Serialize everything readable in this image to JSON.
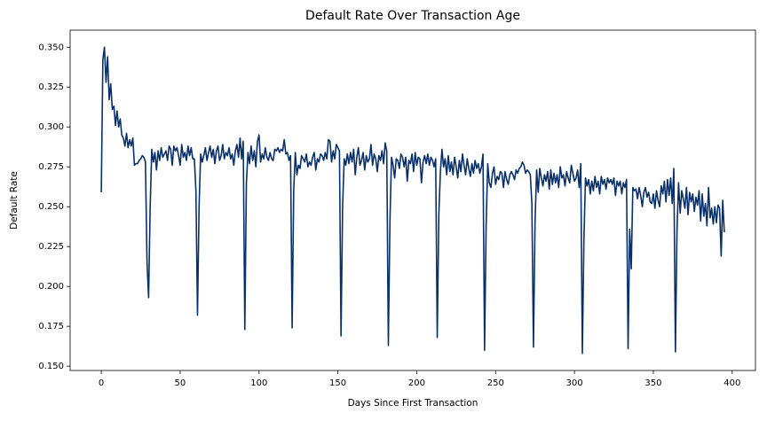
{
  "chart_data": {
    "type": "line",
    "title": "Default Rate Over Transaction Age",
    "xlabel": "Days Since First Transaction",
    "ylabel": "Default Rate",
    "xlim": [
      -19.75,
      414.75
    ],
    "ylim": [
      0.1473,
      0.3607
    ],
    "xticks": [
      0,
      50,
      100,
      150,
      200,
      250,
      300,
      350,
      400
    ],
    "yticks": [
      {
        "value": 0.15,
        "label": "0.150"
      },
      {
        "value": 0.175,
        "label": "0.175"
      },
      {
        "value": 0.2,
        "label": "0.200"
      },
      {
        "value": 0.225,
        "label": "0.225"
      },
      {
        "value": 0.25,
        "label": "0.250"
      },
      {
        "value": 0.275,
        "label": "0.275"
      },
      {
        "value": 0.3,
        "label": "0.300"
      },
      {
        "value": 0.325,
        "label": "0.325"
      },
      {
        "value": 0.35,
        "label": "0.350"
      }
    ],
    "color": "#08306b",
    "x": [
      0,
      1,
      2,
      3,
      4,
      5,
      6,
      7,
      8,
      9,
      10,
      11,
      12,
      13,
      14,
      15,
      16,
      17,
      18,
      19,
      20,
      21,
      22,
      23,
      24,
      25,
      26,
      27,
      28,
      29,
      30,
      31,
      32,
      33,
      34,
      35,
      36,
      37,
      38,
      39,
      40,
      41,
      42,
      43,
      44,
      45,
      46,
      47,
      48,
      49,
      50,
      51,
      52,
      53,
      54,
      55,
      56,
      57,
      58,
      59,
      60,
      61,
      62,
      63,
      64,
      65,
      66,
      67,
      68,
      69,
      70,
      71,
      72,
      73,
      74,
      75,
      76,
      77,
      78,
      79,
      80,
      81,
      82,
      83,
      84,
      85,
      86,
      87,
      88,
      89,
      90,
      91,
      92,
      93,
      94,
      95,
      96,
      97,
      98,
      99,
      100,
      101,
      102,
      103,
      104,
      105,
      106,
      107,
      108,
      109,
      110,
      111,
      112,
      113,
      114,
      115,
      116,
      117,
      118,
      119,
      120,
      121,
      122,
      123,
      124,
      125,
      126,
      127,
      128,
      129,
      130,
      131,
      132,
      133,
      134,
      135,
      136,
      137,
      138,
      139,
      140,
      141,
      142,
      143,
      144,
      145,
      146,
      147,
      148,
      149,
      150,
      151,
      152,
      153,
      154,
      155,
      156,
      157,
      158,
      159,
      160,
      161,
      162,
      163,
      164,
      165,
      166,
      167,
      168,
      169,
      170,
      171,
      172,
      173,
      174,
      175,
      176,
      177,
      178,
      179,
      180,
      181,
      182,
      183,
      184,
      185,
      186,
      187,
      188,
      189,
      190,
      191,
      192,
      193,
      194,
      195,
      196,
      197,
      198,
      199,
      200,
      201,
      202,
      203,
      204,
      205,
      206,
      207,
      208,
      209,
      210,
      211,
      212,
      213,
      214,
      215,
      216,
      217,
      218,
      219,
      220,
      221,
      222,
      223,
      224,
      225,
      226,
      227,
      228,
      229,
      230,
      231,
      232,
      233,
      234,
      235,
      236,
      237,
      238,
      239,
      240,
      241,
      242,
      243,
      244,
      245,
      246,
      247,
      248,
      249,
      250,
      251,
      252,
      253,
      254,
      255,
      256,
      257,
      258,
      259,
      260,
      261,
      262,
      263,
      264,
      265,
      266,
      267,
      268,
      269,
      270,
      271,
      272,
      273,
      274,
      275,
      276,
      277,
      278,
      279,
      280,
      281,
      282,
      283,
      284,
      285,
      286,
      287,
      288,
      289,
      290,
      291,
      292,
      293,
      294,
      295,
      296,
      297,
      298,
      299,
      300,
      301,
      302,
      303,
      304,
      305,
      306,
      307,
      308,
      309,
      310,
      311,
      312,
      313,
      314,
      315,
      316,
      317,
      318,
      319,
      320,
      321,
      322,
      323,
      324,
      325,
      326,
      327,
      328,
      329,
      330,
      331,
      332,
      333,
      334,
      335,
      336,
      337,
      338,
      339,
      340,
      341,
      342,
      343,
      344,
      345,
      346,
      347,
      348,
      349,
      350,
      351,
      352,
      353,
      354,
      355,
      356,
      357,
      358,
      359,
      360,
      361,
      362,
      363,
      364,
      365,
      366,
      367,
      368,
      369,
      370,
      371,
      372,
      373,
      374,
      375,
      376,
      377,
      378,
      379,
      380,
      381,
      382,
      383,
      384,
      385,
      386,
      387,
      388,
      389,
      390,
      391,
      392,
      393,
      394,
      395
    ],
    "values": [
      0.259,
      0.342,
      0.35,
      0.328,
      0.344,
      0.317,
      0.327,
      0.311,
      0.313,
      0.301,
      0.31,
      0.3,
      0.305,
      0.295,
      0.293,
      0.288,
      0.296,
      0.287,
      0.292,
      0.288,
      0.293,
      0.276,
      0.277,
      0.277,
      0.279,
      0.28,
      0.282,
      0.281,
      0.278,
      0.215,
      0.193,
      0.25,
      0.286,
      0.278,
      0.284,
      0.273,
      0.285,
      0.279,
      0.287,
      0.281,
      0.283,
      0.285,
      0.279,
      0.288,
      0.286,
      0.276,
      0.288,
      0.285,
      0.287,
      0.282,
      0.276,
      0.289,
      0.281,
      0.284,
      0.279,
      0.288,
      0.282,
      0.287,
      0.28,
      0.28,
      0.26,
      0.182,
      0.25,
      0.283,
      0.278,
      0.282,
      0.287,
      0.279,
      0.284,
      0.288,
      0.281,
      0.286,
      0.277,
      0.285,
      0.288,
      0.279,
      0.282,
      0.289,
      0.28,
      0.284,
      0.282,
      0.287,
      0.28,
      0.283,
      0.276,
      0.285,
      0.289,
      0.281,
      0.293,
      0.28,
      0.291,
      0.173,
      0.265,
      0.284,
      0.277,
      0.288,
      0.279,
      0.285,
      0.275,
      0.291,
      0.295,
      0.278,
      0.283,
      0.28,
      0.287,
      0.281,
      0.279,
      0.284,
      0.28,
      0.279,
      0.286,
      0.285,
      0.287,
      0.284,
      0.286,
      0.285,
      0.292,
      0.283,
      0.284,
      0.279,
      0.282,
      0.174,
      0.26,
      0.284,
      0.27,
      0.276,
      0.274,
      0.282,
      0.28,
      0.278,
      0.283,
      0.275,
      0.278,
      0.276,
      0.281,
      0.284,
      0.273,
      0.28,
      0.278,
      0.283,
      0.282,
      0.279,
      0.284,
      0.28,
      0.292,
      0.291,
      0.278,
      0.285,
      0.28,
      0.289,
      0.287,
      0.285,
      0.169,
      0.25,
      0.28,
      0.276,
      0.283,
      0.277,
      0.284,
      0.278,
      0.286,
      0.27,
      0.281,
      0.287,
      0.276,
      0.279,
      0.284,
      0.273,
      0.282,
      0.278,
      0.28,
      0.289,
      0.276,
      0.283,
      0.28,
      0.272,
      0.282,
      0.279,
      0.285,
      0.277,
      0.29,
      0.285,
      0.163,
      0.24,
      0.281,
      0.276,
      0.268,
      0.28,
      0.279,
      0.274,
      0.283,
      0.281,
      0.275,
      0.281,
      0.266,
      0.279,
      0.277,
      0.283,
      0.272,
      0.284,
      0.276,
      0.281,
      0.28,
      0.265,
      0.278,
      0.282,
      0.277,
      0.283,
      0.276,
      0.281,
      0.279,
      0.275,
      0.28,
      0.168,
      0.245,
      0.272,
      0.286,
      0.275,
      0.28,
      0.27,
      0.282,
      0.272,
      0.278,
      0.27,
      0.281,
      0.275,
      0.268,
      0.279,
      0.272,
      0.283,
      0.276,
      0.27,
      0.28,
      0.274,
      0.269,
      0.277,
      0.271,
      0.279,
      0.274,
      0.277,
      0.271,
      0.275,
      0.283,
      0.16,
      0.238,
      0.277,
      0.265,
      0.262,
      0.271,
      0.275,
      0.264,
      0.269,
      0.267,
      0.272,
      0.271,
      0.262,
      0.272,
      0.267,
      0.264,
      0.27,
      0.272,
      0.27,
      0.267,
      0.273,
      0.271,
      0.274,
      0.275,
      0.278,
      0.276,
      0.271,
      0.273,
      0.272,
      0.27,
      0.252,
      0.162,
      0.24,
      0.273,
      0.259,
      0.274,
      0.268,
      0.263,
      0.27,
      0.266,
      0.272,
      0.261,
      0.273,
      0.264,
      0.271,
      0.265,
      0.27,
      0.262,
      0.275,
      0.268,
      0.27,
      0.263,
      0.272,
      0.268,
      0.265,
      0.276,
      0.271,
      0.266,
      0.268,
      0.273,
      0.262,
      0.277,
      0.158,
      0.23,
      0.268,
      0.263,
      0.267,
      0.258,
      0.266,
      0.26,
      0.269,
      0.262,
      0.266,
      0.258,
      0.269,
      0.264,
      0.267,
      0.261,
      0.268,
      0.265,
      0.267,
      0.264,
      0.268,
      0.257,
      0.266,
      0.263,
      0.266,
      0.258,
      0.265,
      0.262,
      0.267,
      0.161,
      0.236,
      0.211,
      0.262,
      0.26,
      0.261,
      0.255,
      0.262,
      0.257,
      0.25,
      0.259,
      0.262,
      0.256,
      0.259,
      0.253,
      0.252,
      0.258,
      0.249,
      0.26,
      0.254,
      0.25,
      0.263,
      0.258,
      0.266,
      0.253,
      0.267,
      0.257,
      0.268,
      0.252,
      0.274,
      0.159,
      0.235,
      0.265,
      0.246,
      0.26,
      0.255,
      0.249,
      0.262,
      0.245,
      0.259,
      0.253,
      0.258,
      0.247,
      0.256,
      0.251,
      0.26,
      0.241,
      0.258,
      0.244,
      0.252,
      0.238,
      0.262,
      0.243,
      0.249,
      0.239,
      0.25,
      0.24,
      0.251,
      0.249,
      0.219,
      0.254,
      0.234
    ]
  }
}
